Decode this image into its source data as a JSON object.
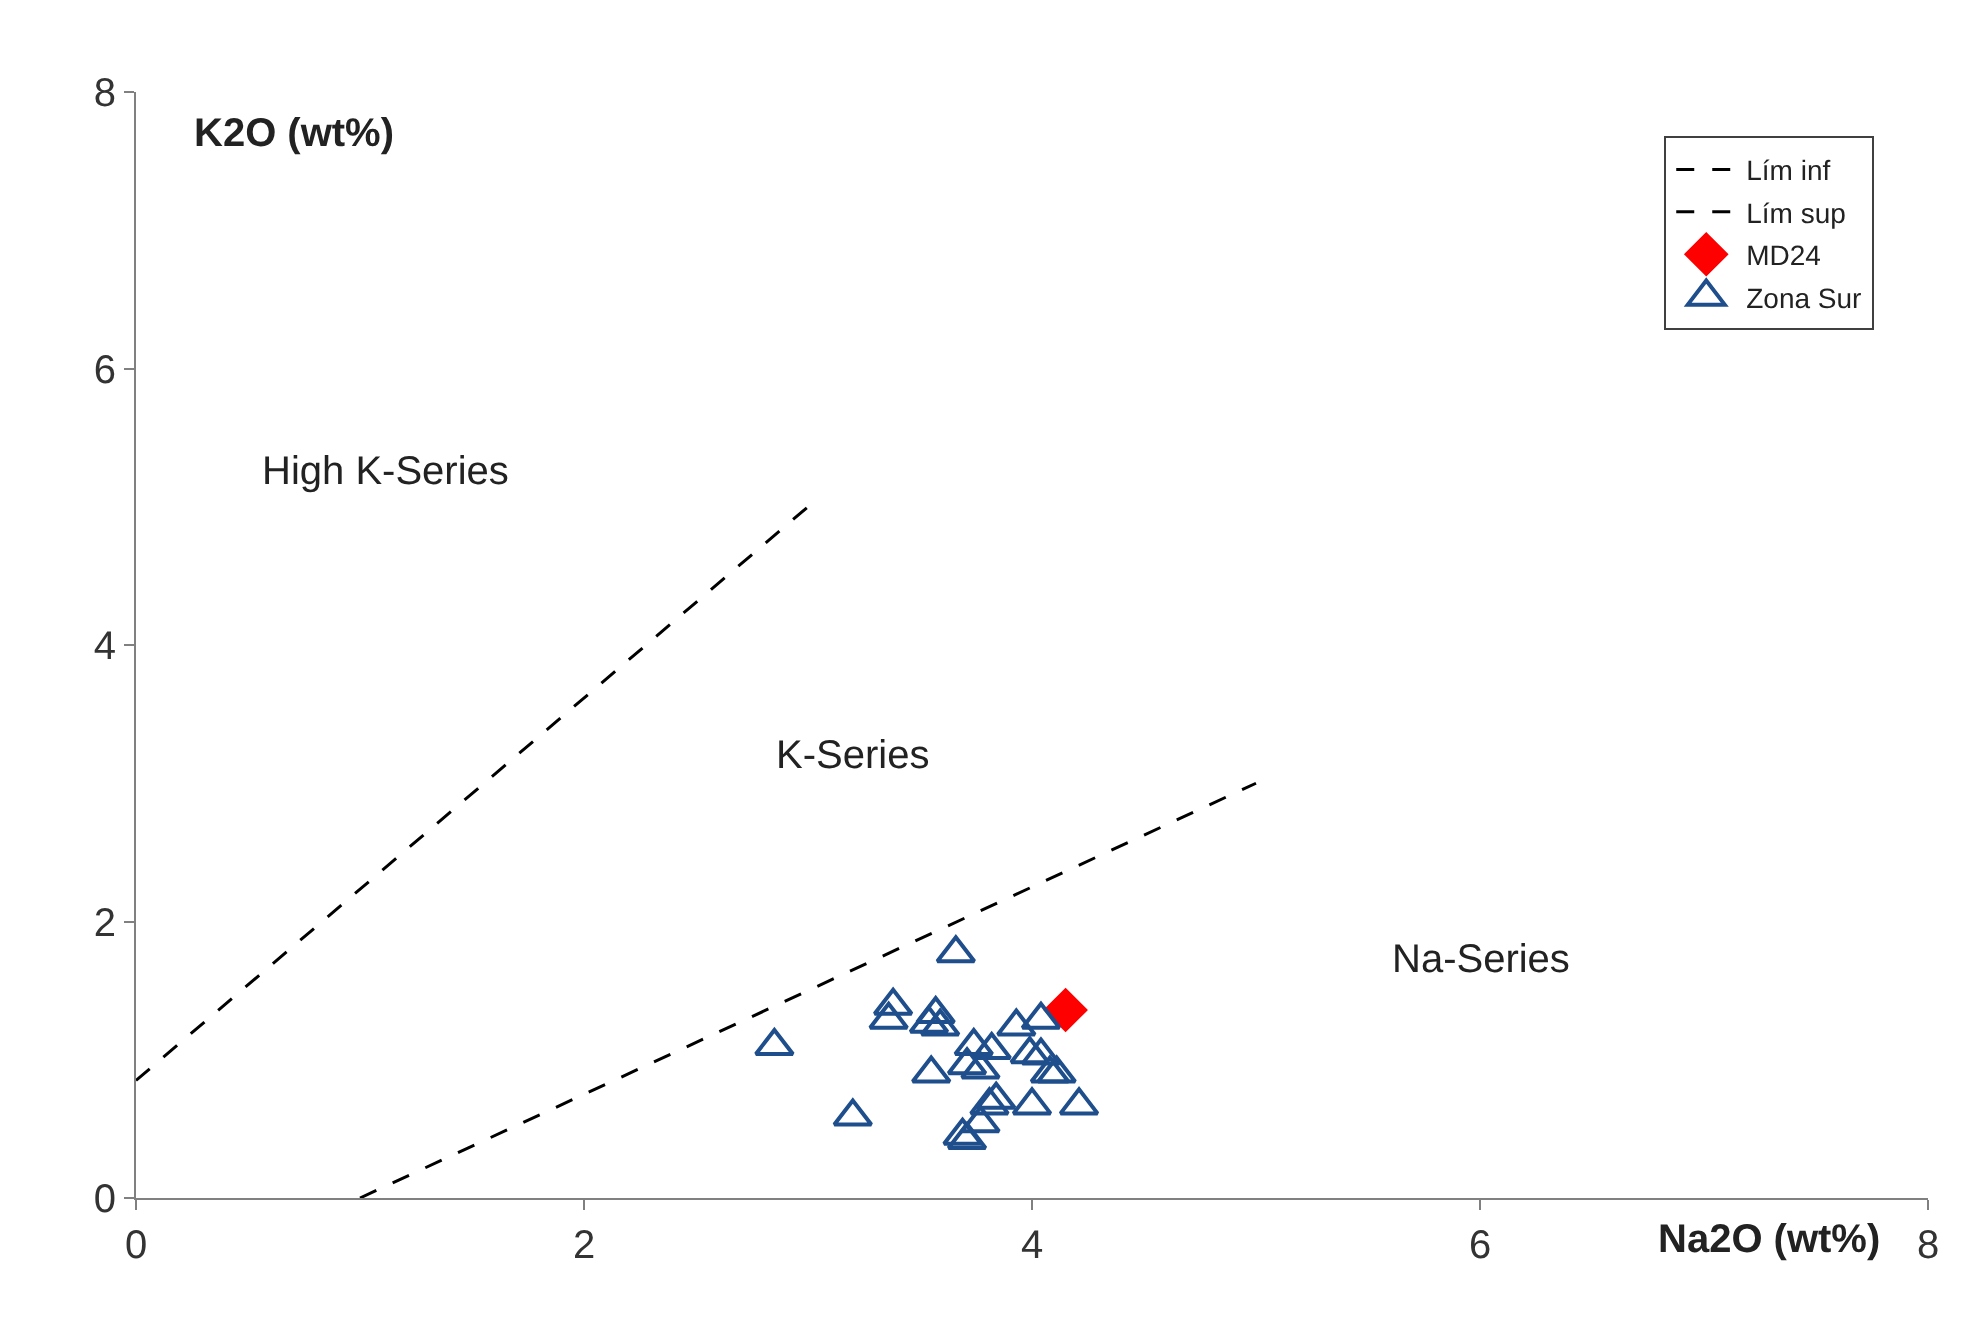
{
  "chart_data": {
    "type": "scatter",
    "xlabel": "Na2O (wt%)",
    "ylabel": "K2O (wt%)",
    "xlim": [
      0,
      8
    ],
    "ylim": [
      0,
      8
    ],
    "xticks": [
      0,
      2,
      4,
      6,
      8
    ],
    "yticks": [
      0,
      2,
      4,
      6,
      8
    ],
    "grid": false,
    "legend": "top right",
    "series": [
      {
        "name": "Lím inf",
        "type": "line",
        "color": "#000000",
        "line_style": "dashed",
        "marker": "none",
        "x": [
          1,
          5
        ],
        "values": [
          0,
          3
        ]
      },
      {
        "name": "Lím sup",
        "type": "line",
        "color": "#000000",
        "line_style": "dashed",
        "marker": "none",
        "x": [
          0,
          3
        ],
        "values": [
          0.85,
          5
        ]
      },
      {
        "name": "MD24",
        "color": "#ff0000",
        "marker": "diamond",
        "x": [
          4.15
        ],
        "values": [
          1.36
        ]
      },
      {
        "name": "Zona Sur",
        "color": "#1f4e8c",
        "marker": "triangle",
        "x": [
          2.85,
          3.2,
          3.66,
          3.38,
          3.36,
          3.57,
          3.54,
          3.59,
          3.55,
          3.74,
          3.82,
          3.71,
          3.77,
          3.93,
          4.04,
          3.99,
          4.04,
          4.11,
          4.08,
          3.84,
          3.81,
          4.0,
          4.21,
          3.77,
          3.69,
          3.71
        ],
        "values": [
          1.1,
          0.59,
          1.77,
          1.39,
          1.29,
          1.33,
          1.26,
          1.24,
          0.9,
          1.1,
          1.07,
          0.96,
          0.93,
          1.24,
          1.29,
          1.04,
          1.03,
          0.9,
          0.9,
          0.71,
          0.67,
          0.67,
          0.67,
          0.54,
          0.45,
          0.42
        ]
      }
    ],
    "annotations": [
      "High K-Series",
      "K-Series",
      "Na-Series"
    ]
  }
}
